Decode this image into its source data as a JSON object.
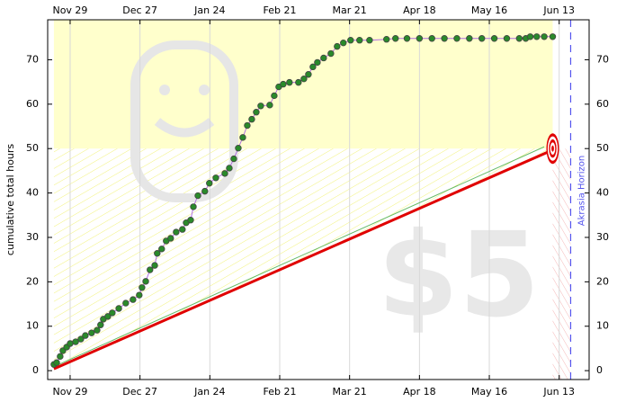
{
  "chart_data": {
    "type": "line",
    "y_label": "cumulative total hours",
    "watermark": "$5",
    "horizon_label": "Akrasia Horizon",
    "horizon_x": 200.6,
    "goal_value": 50,
    "xlim": [
      -9,
      208
    ],
    "ylim": [
      -2,
      79
    ],
    "xticks": [
      {
        "value": 0,
        "label": "Nov 29"
      },
      {
        "value": 28,
        "label": "Dec 27"
      },
      {
        "value": 56,
        "label": "Jan 24"
      },
      {
        "value": 84,
        "label": "Feb 21"
      },
      {
        "value": 112,
        "label": "Mar 21"
      },
      {
        "value": 140,
        "label": "Apr 18"
      },
      {
        "value": 168,
        "label": "May 16"
      },
      {
        "value": 196,
        "label": "Jun 13"
      }
    ],
    "yticks": [
      0,
      10,
      20,
      30,
      40,
      50,
      60,
      70
    ],
    "grid": true,
    "road": {
      "color": "#e00000",
      "x": [
        -6.5,
        193.4
      ],
      "values": [
        0.4,
        49.7
      ]
    },
    "guide": {
      "color": "#66bb66",
      "x": [
        -6.5,
        190
      ],
      "values": [
        0.9,
        50.4
      ]
    },
    "target": {
      "x": 193.4,
      "value": 50
    },
    "series": [
      {
        "color": "#2a8a2a",
        "line_color": "#b070e0",
        "x": [
          -6.5,
          -5.4,
          -4,
          -2.9,
          -1.4,
          0,
          2.2,
          4.3,
          6.1,
          8.6,
          10.8,
          12.2,
          13.3,
          15.1,
          16.9,
          19.5,
          22.3,
          25.2,
          27.7,
          28.8,
          30.3,
          32,
          33.9,
          34.9,
          36.7,
          38.5,
          40.3,
          42.5,
          45,
          46.5,
          48.3,
          49.4,
          51.2,
          54,
          55.8,
          58.4,
          62,
          63.8,
          65.6,
          67.4,
          69.2,
          71,
          72.8,
          74.6,
          76.4,
          80,
          81.8,
          83.6,
          85.4,
          87.9,
          91.5,
          93.7,
          95.5,
          97.3,
          99.1,
          101.6,
          104.5,
          107,
          109.5,
          112.4,
          116,
          120,
          126.8,
          130.4,
          135,
          140,
          145,
          150,
          155,
          160,
          165,
          170,
          175,
          180,
          182.6,
          184.4,
          187,
          190,
          193.4
        ],
        "values": [
          1.4,
          1.8,
          3.2,
          4.5,
          5.3,
          6.1,
          6.5,
          7.1,
          7.9,
          8.5,
          9.1,
          10.3,
          11.6,
          12.2,
          13,
          14,
          15.2,
          16,
          17,
          18.7,
          20.1,
          22.7,
          23.7,
          26.4,
          27.4,
          29.2,
          29.8,
          31.2,
          31.8,
          33.3,
          33.9,
          36.9,
          39.4,
          40.4,
          42.2,
          43.4,
          44.4,
          45.6,
          47.7,
          50.1,
          52.5,
          55.2,
          56.6,
          58.2,
          59.6,
          59.8,
          61.9,
          63.9,
          64.5,
          64.9,
          64.9,
          65.7,
          66.7,
          68.4,
          69.4,
          70.4,
          71.4,
          73,
          73.8,
          74.4,
          74.4,
          74.4,
          74.6,
          74.8,
          74.8,
          74.8,
          74.8,
          74.8,
          74.8,
          74.8,
          74.8,
          74.8,
          74.8,
          74.8,
          74.8,
          75.2,
          75.2,
          75.2,
          75.2
        ]
      }
    ]
  }
}
